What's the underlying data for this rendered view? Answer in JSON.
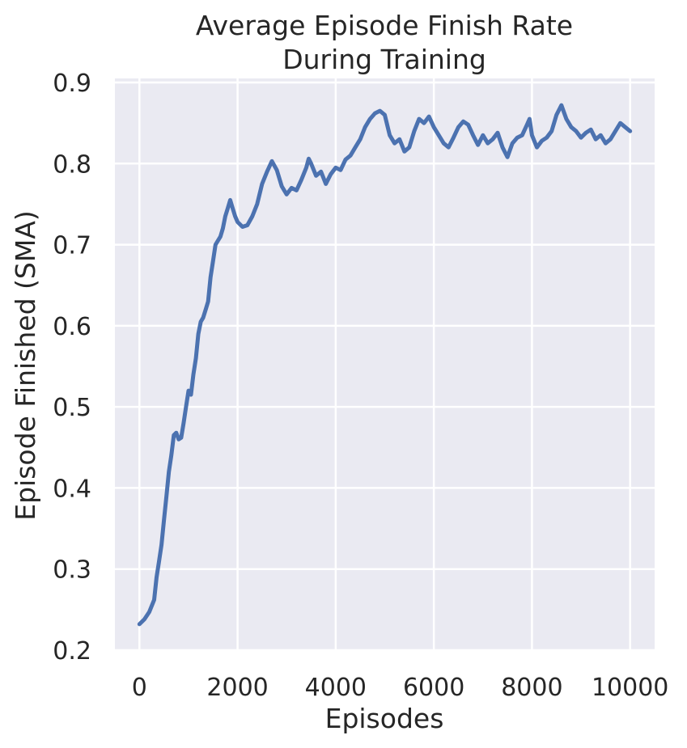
{
  "chart_data": {
    "type": "line",
    "title": "Average Episode Finish Rate\nDuring Training",
    "title_lines": [
      "Average Episode Finish Rate",
      "During Training"
    ],
    "xlabel": "Episodes",
    "ylabel": "Episode Finished (SMA)",
    "xlim": [
      -500,
      10500
    ],
    "ylim": [
      0.2,
      0.905
    ],
    "xticks": [
      0,
      2000,
      4000,
      6000,
      8000,
      10000
    ],
    "xtick_labels": [
      "0",
      "2000",
      "4000",
      "6000",
      "8000",
      "10000"
    ],
    "yticks": [
      0.2,
      0.3,
      0.4,
      0.5,
      0.6,
      0.7,
      0.8,
      0.9
    ],
    "ytick_labels": [
      "0.2",
      "0.3",
      "0.4",
      "0.5",
      "0.6",
      "0.7",
      "0.8",
      "0.9"
    ],
    "grid": true,
    "style": "seaborn-darkgrid",
    "colors": {
      "line": "#4c72b0",
      "plot_background": "#eaeaf2",
      "grid": "#ffffff",
      "text": "#262626"
    },
    "series": [
      {
        "points": [
          [
            0,
            0.232
          ],
          [
            100,
            0.238
          ],
          [
            200,
            0.247
          ],
          [
            300,
            0.262
          ],
          [
            350,
            0.29
          ],
          [
            400,
            0.31
          ],
          [
            450,
            0.33
          ],
          [
            500,
            0.36
          ],
          [
            550,
            0.39
          ],
          [
            600,
            0.42
          ],
          [
            650,
            0.44
          ],
          [
            700,
            0.465
          ],
          [
            750,
            0.468
          ],
          [
            800,
            0.46
          ],
          [
            850,
            0.462
          ],
          [
            900,
            0.48
          ],
          [
            950,
            0.5
          ],
          [
            1000,
            0.52
          ],
          [
            1050,
            0.515
          ],
          [
            1100,
            0.54
          ],
          [
            1150,
            0.56
          ],
          [
            1200,
            0.59
          ],
          [
            1250,
            0.605
          ],
          [
            1300,
            0.61
          ],
          [
            1350,
            0.62
          ],
          [
            1400,
            0.63
          ],
          [
            1450,
            0.66
          ],
          [
            1500,
            0.68
          ],
          [
            1550,
            0.7
          ],
          [
            1600,
            0.705
          ],
          [
            1650,
            0.71
          ],
          [
            1700,
            0.72
          ],
          [
            1750,
            0.735
          ],
          [
            1800,
            0.745
          ],
          [
            1850,
            0.755
          ],
          [
            1900,
            0.745
          ],
          [
            1950,
            0.735
          ],
          [
            2000,
            0.728
          ],
          [
            2100,
            0.722
          ],
          [
            2200,
            0.724
          ],
          [
            2300,
            0.735
          ],
          [
            2400,
            0.75
          ],
          [
            2500,
            0.775
          ],
          [
            2600,
            0.79
          ],
          [
            2700,
            0.803
          ],
          [
            2800,
            0.792
          ],
          [
            2900,
            0.772
          ],
          [
            3000,
            0.762
          ],
          [
            3100,
            0.77
          ],
          [
            3200,
            0.767
          ],
          [
            3300,
            0.78
          ],
          [
            3400,
            0.795
          ],
          [
            3450,
            0.806
          ],
          [
            3500,
            0.8
          ],
          [
            3600,
            0.785
          ],
          [
            3700,
            0.79
          ],
          [
            3800,
            0.775
          ],
          [
            3900,
            0.787
          ],
          [
            4000,
            0.795
          ],
          [
            4100,
            0.792
          ],
          [
            4200,
            0.805
          ],
          [
            4300,
            0.81
          ],
          [
            4400,
            0.82
          ],
          [
            4500,
            0.83
          ],
          [
            4600,
            0.845
          ],
          [
            4700,
            0.855
          ],
          [
            4800,
            0.862
          ],
          [
            4900,
            0.865
          ],
          [
            5000,
            0.86
          ],
          [
            5100,
            0.835
          ],
          [
            5200,
            0.825
          ],
          [
            5300,
            0.83
          ],
          [
            5400,
            0.815
          ],
          [
            5500,
            0.82
          ],
          [
            5600,
            0.84
          ],
          [
            5700,
            0.855
          ],
          [
            5800,
            0.85
          ],
          [
            5900,
            0.858
          ],
          [
            6000,
            0.845
          ],
          [
            6100,
            0.835
          ],
          [
            6200,
            0.825
          ],
          [
            6300,
            0.82
          ],
          [
            6400,
            0.832
          ],
          [
            6500,
            0.845
          ],
          [
            6600,
            0.852
          ],
          [
            6700,
            0.848
          ],
          [
            6800,
            0.835
          ],
          [
            6900,
            0.823
          ],
          [
            7000,
            0.835
          ],
          [
            7100,
            0.825
          ],
          [
            7200,
            0.83
          ],
          [
            7300,
            0.838
          ],
          [
            7400,
            0.82
          ],
          [
            7500,
            0.808
          ],
          [
            7600,
            0.825
          ],
          [
            7700,
            0.832
          ],
          [
            7800,
            0.835
          ],
          [
            7900,
            0.848
          ],
          [
            7950,
            0.855
          ],
          [
            8000,
            0.835
          ],
          [
            8100,
            0.82
          ],
          [
            8200,
            0.828
          ],
          [
            8300,
            0.832
          ],
          [
            8400,
            0.84
          ],
          [
            8500,
            0.86
          ],
          [
            8600,
            0.872
          ],
          [
            8700,
            0.855
          ],
          [
            8800,
            0.845
          ],
          [
            8900,
            0.84
          ],
          [
            9000,
            0.832
          ],
          [
            9100,
            0.838
          ],
          [
            9200,
            0.842
          ],
          [
            9300,
            0.83
          ],
          [
            9400,
            0.835
          ],
          [
            9500,
            0.825
          ],
          [
            9600,
            0.83
          ],
          [
            9700,
            0.84
          ],
          [
            9800,
            0.85
          ],
          [
            9900,
            0.845
          ],
          [
            10000,
            0.84
          ]
        ]
      }
    ]
  }
}
